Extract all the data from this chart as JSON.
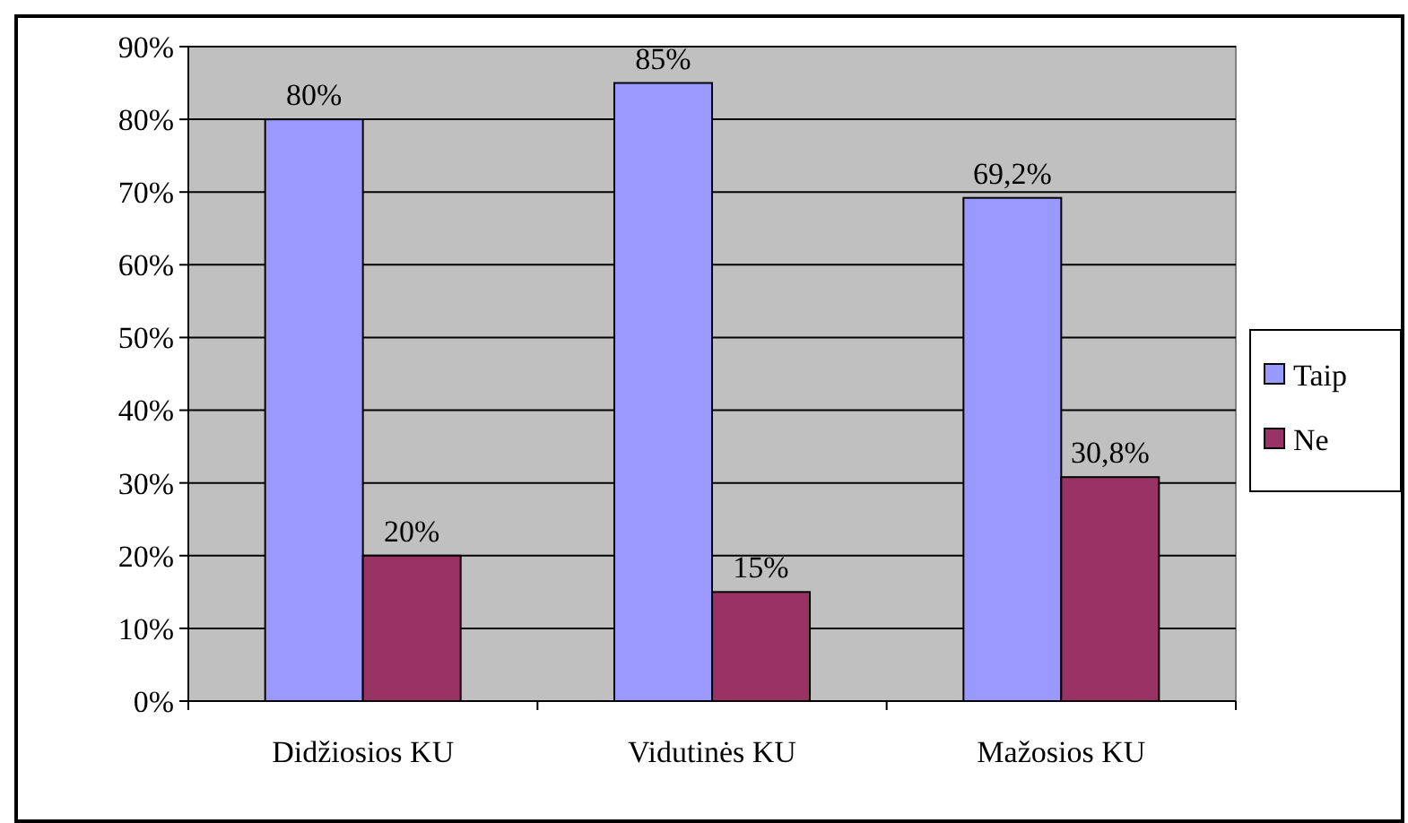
{
  "chart_data": {
    "type": "bar",
    "categories": [
      "Didžiosios KU",
      "Vidutinės KU",
      "Mažosios KU"
    ],
    "series": [
      {
        "name": "Taip",
        "color": "#9999ff",
        "values": [
          80,
          85,
          69.2
        ],
        "value_labels": [
          "80%",
          "85%",
          "69,2%"
        ]
      },
      {
        "name": "Ne",
        "color": "#993366",
        "values": [
          20,
          15,
          30.8
        ],
        "value_labels": [
          "20%",
          "15%",
          "30,8%"
        ]
      }
    ],
    "ylim": [
      0,
      90
    ],
    "yticks": [
      {
        "value": 0,
        "label": "0%"
      },
      {
        "value": 10,
        "label": "10%"
      },
      {
        "value": 20,
        "label": "20%"
      },
      {
        "value": 30,
        "label": "30%"
      },
      {
        "value": 40,
        "label": "40%"
      },
      {
        "value": 50,
        "label": "50%"
      },
      {
        "value": 60,
        "label": "60%"
      },
      {
        "value": 70,
        "label": "70%"
      },
      {
        "value": 80,
        "label": "80%"
      },
      {
        "value": 90,
        "label": "90%"
      }
    ],
    "grid": "y",
    "legend": "right"
  }
}
